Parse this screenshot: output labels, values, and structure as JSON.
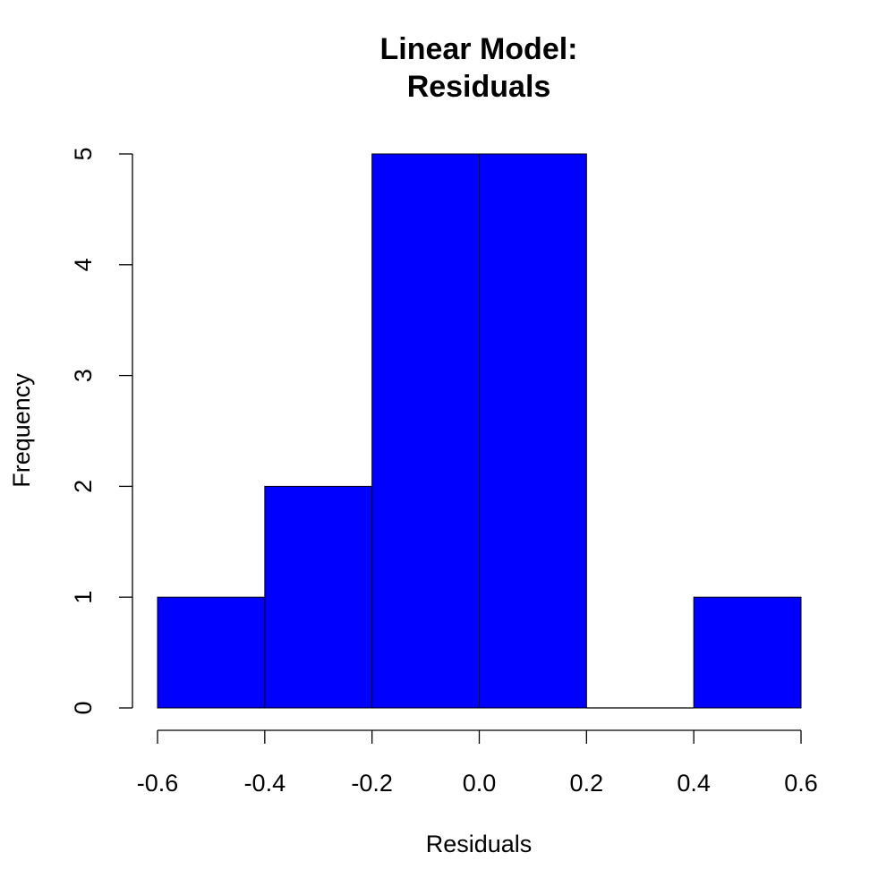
{
  "chart_data": {
    "type": "bar",
    "title_lines": [
      "Linear Model:",
      "Residuals"
    ],
    "xlabel": "Residuals",
    "ylabel": "Frequency",
    "bins": [
      {
        "x0": -0.6,
        "x1": -0.4,
        "count": 1
      },
      {
        "x0": -0.4,
        "x1": -0.2,
        "count": 2
      },
      {
        "x0": -0.2,
        "x1": 0.0,
        "count": 5
      },
      {
        "x0": 0.0,
        "x1": 0.2,
        "count": 5
      },
      {
        "x0": 0.2,
        "x1": 0.4,
        "count": 0
      },
      {
        "x0": 0.4,
        "x1": 0.6,
        "count": 1
      }
    ],
    "xlim": [
      -0.6,
      0.6
    ],
    "ylim": [
      0,
      5
    ],
    "x_ticks": [
      {
        "value": -0.6,
        "label": "-0.6"
      },
      {
        "value": -0.4,
        "label": "-0.4"
      },
      {
        "value": -0.2,
        "label": "-0.2"
      },
      {
        "value": 0.0,
        "label": "0.0"
      },
      {
        "value": 0.2,
        "label": "0.2"
      },
      {
        "value": 0.4,
        "label": "0.4"
      },
      {
        "value": 0.6,
        "label": "0.6"
      }
    ],
    "y_ticks": [
      {
        "value": 0,
        "label": "0"
      },
      {
        "value": 1,
        "label": "1"
      },
      {
        "value": 2,
        "label": "2"
      },
      {
        "value": 3,
        "label": "3"
      },
      {
        "value": 4,
        "label": "4"
      },
      {
        "value": 5,
        "label": "5"
      }
    ],
    "bar_color": "#0000ff",
    "grid": false,
    "legend": "none"
  }
}
